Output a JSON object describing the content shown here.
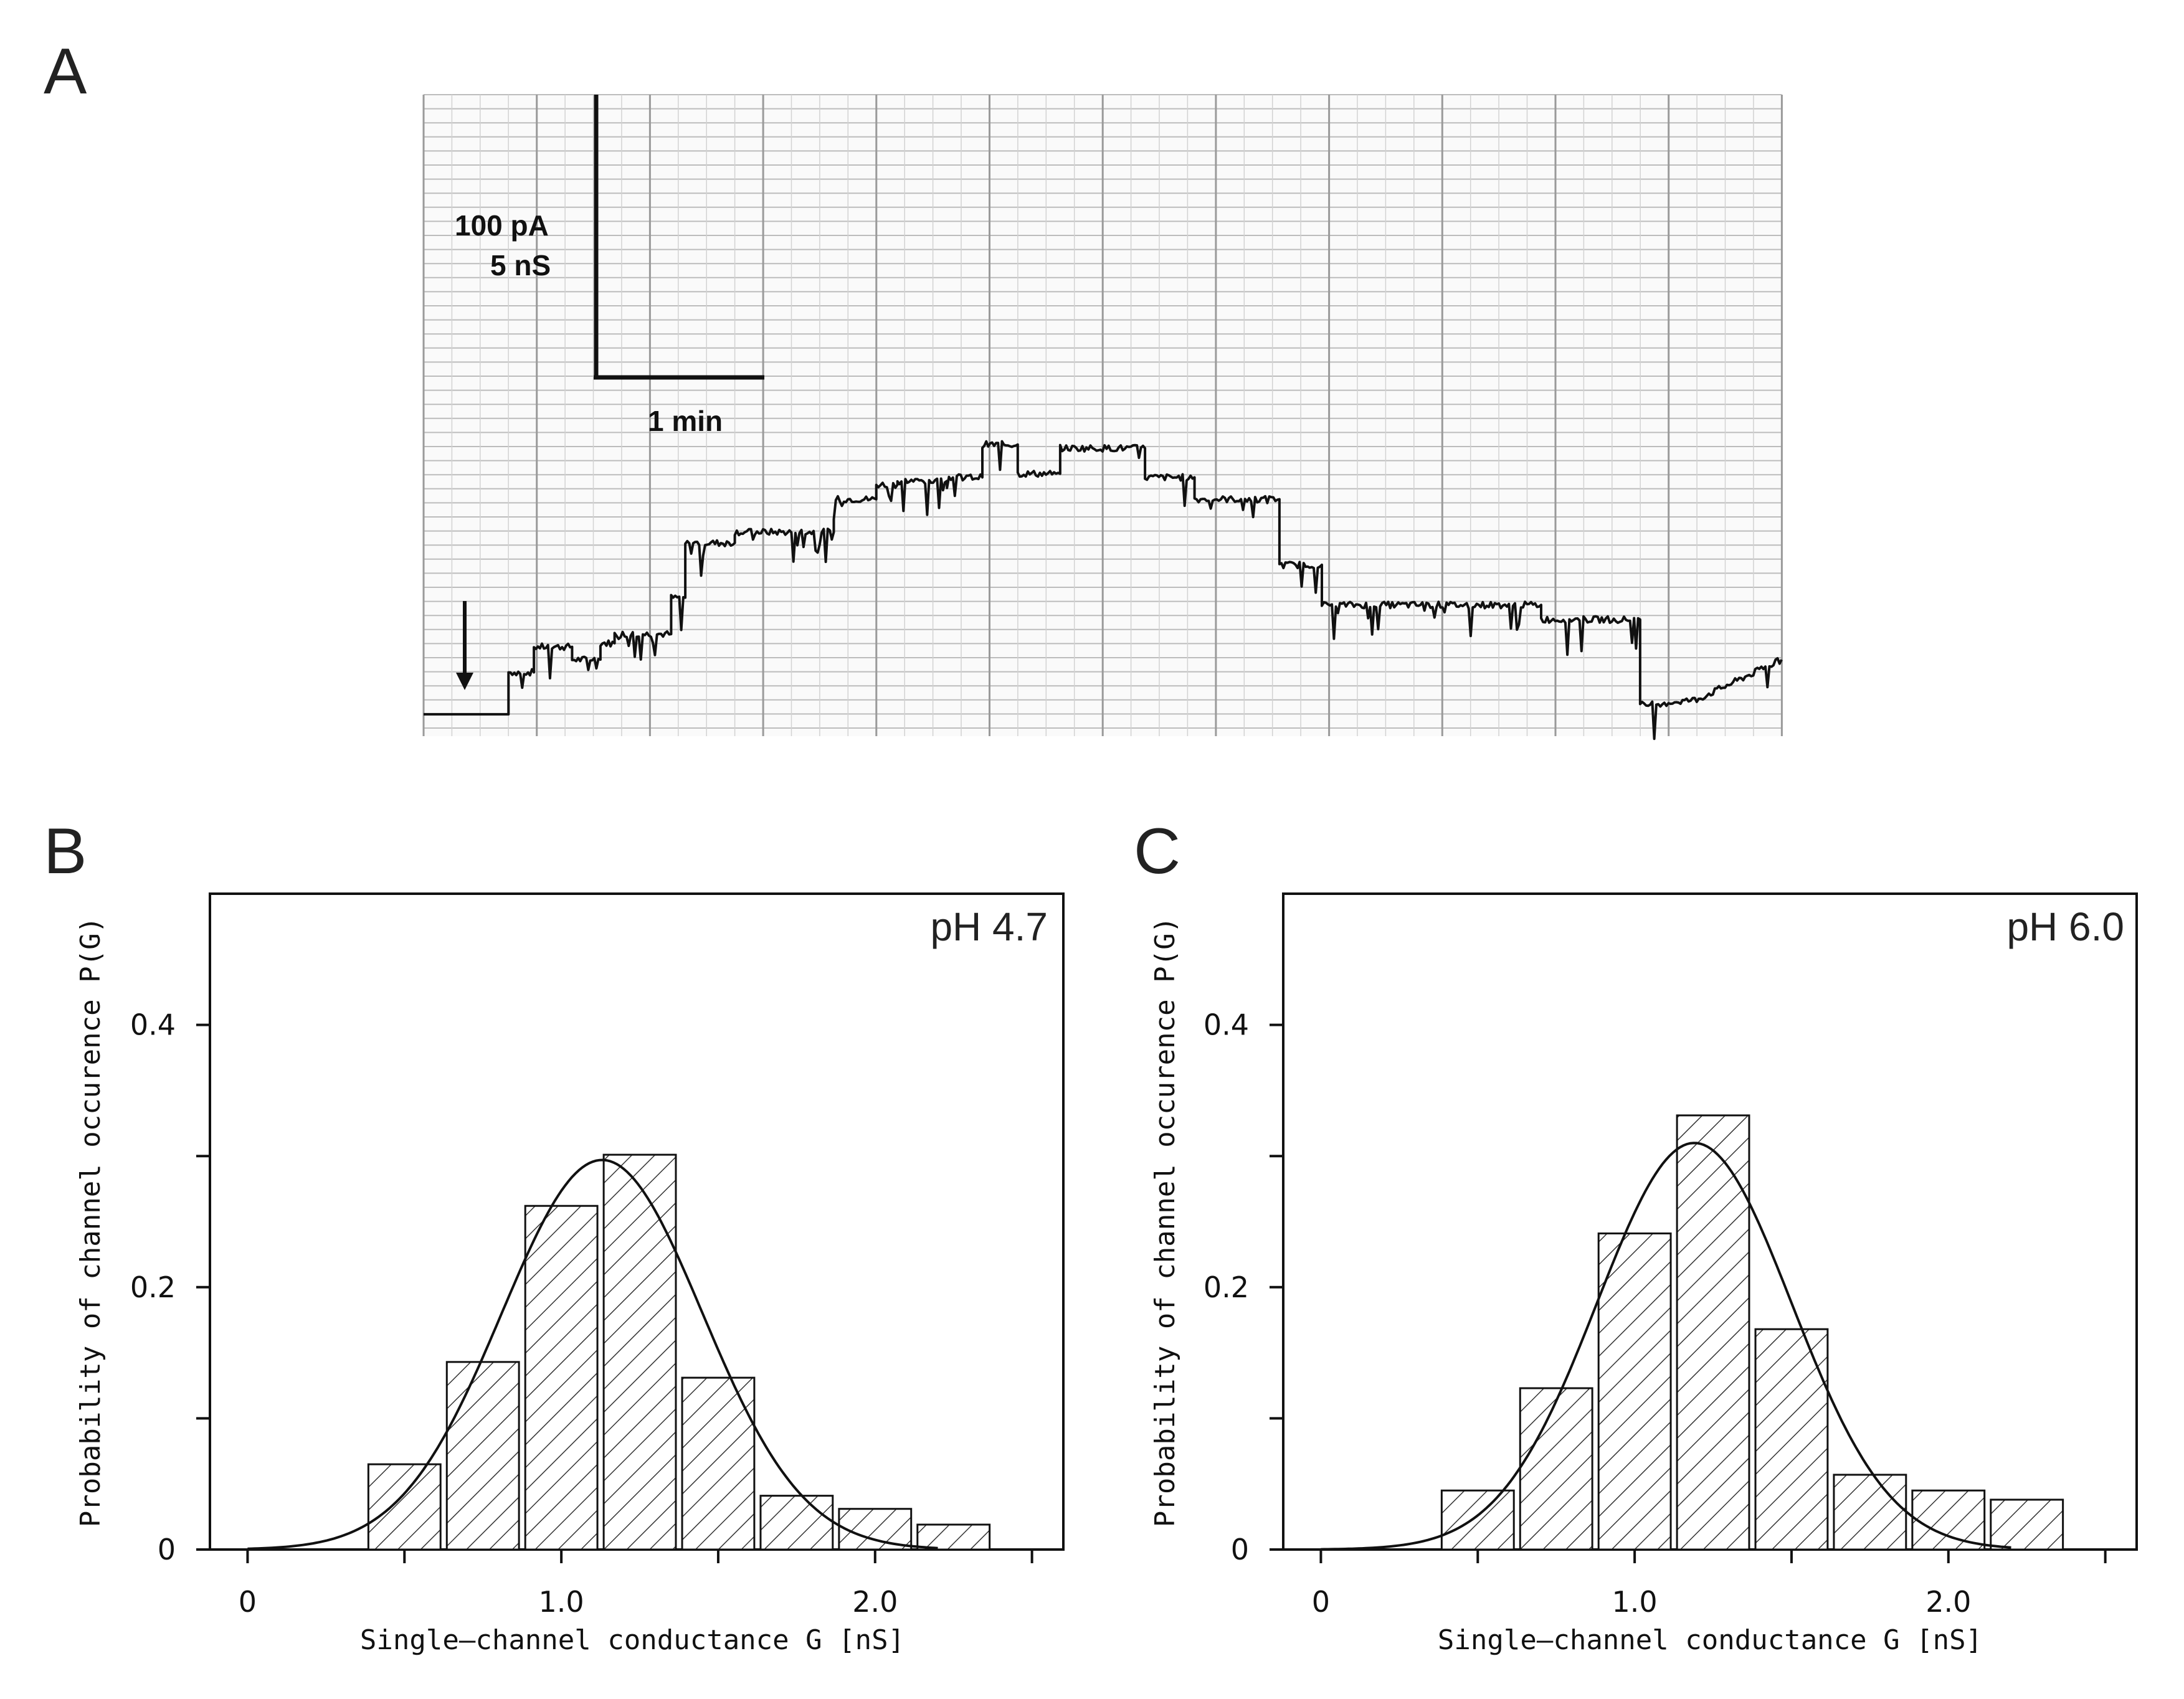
{
  "panels": {
    "A": {
      "letter": "A"
    },
    "B": {
      "letter": "B"
    },
    "C": {
      "letter": "C"
    }
  },
  "trace": {
    "scale_current": "100 pA",
    "scale_conductance": "5 nS",
    "scale_time": "1 min"
  },
  "chart_data": [
    {
      "type": "line",
      "panel": "A",
      "title": "",
      "description_units": {
        "y": "nS",
        "x": "min"
      },
      "x": [
        0,
        0.6,
        0.6,
        0.78,
        0.78,
        1.05,
        1.05,
        1.25,
        1.25,
        1.35,
        1.35,
        1.75,
        1.75,
        1.85,
        1.85,
        2.2,
        2.2,
        2.9,
        2.9,
        3.2,
        3.2,
        3.35,
        3.35,
        3.7,
        3.7,
        3.95,
        3.95,
        4.2,
        4.2,
        4.5,
        4.5,
        5.1,
        5.1,
        5.45,
        5.45,
        6.05,
        6.05,
        6.35,
        6.35,
        7.9,
        7.9,
        8.6,
        8.6,
        9.0,
        9.6
      ],
      "y": [
        0,
        0,
        1.15,
        1.15,
        1.85,
        1.85,
        1.5,
        1.5,
        1.95,
        1.95,
        2.2,
        2.2,
        3.2,
        3.2,
        4.7,
        4.7,
        5.0,
        5.0,
        5.9,
        5.9,
        6.3,
        6.3,
        6.4,
        6.4,
        6.5,
        6.5,
        7.4,
        7.4,
        6.6,
        6.6,
        7.3,
        7.3,
        6.5,
        6.5,
        5.9,
        5.9,
        4.1,
        4.1,
        3.0,
        3.0,
        2.6,
        2.6,
        0.25,
        0.4,
        1.5
      ],
      "xlim": [
        0,
        9.6
      ],
      "ylim": [
        -0.6,
        17.0
      ],
      "annotations": [
        "arrow marks addition at t = 0.28 min"
      ]
    },
    {
      "type": "bar",
      "panel": "B",
      "title": "pH 4.7",
      "xlabel": "Single–channel conductance G [nS]",
      "ylabel": "Probability of channel occurence P(G)",
      "categories": [
        "0.5",
        "0.75",
        "1.0",
        "1.25",
        "1.5",
        "1.75",
        "2.0",
        "2.25"
      ],
      "bin_centers": [
        0.5,
        0.75,
        1.0,
        1.25,
        1.5,
        1.75,
        2.0,
        2.25
      ],
      "values": [
        0.065,
        0.143,
        0.262,
        0.301,
        0.131,
        0.041,
        0.031,
        0.019
      ],
      "fit": {
        "type": "gaussian",
        "mean": 1.13,
        "sd": 0.32,
        "amplitude": 0.297
      },
      "xlim": [
        -0.12,
        2.6
      ],
      "ylim": [
        0,
        0.5
      ],
      "xticks": [
        0,
        1.0,
        2.0
      ],
      "xtick_labels": [
        "0",
        "1.0",
        "2.0"
      ],
      "yticks": [
        0,
        0.2,
        0.4
      ],
      "ytick_labels": [
        "0",
        "0.2",
        "0.4"
      ],
      "grid": false
    },
    {
      "type": "bar",
      "panel": "C",
      "title": "pH 6.0",
      "xlabel": "Single–channel conductance G [nS]",
      "ylabel": "Probability of channel occurence P(G)",
      "categories": [
        "0.5",
        "0.75",
        "1.0",
        "1.25",
        "1.5",
        "1.75",
        "2.0",
        "2.25"
      ],
      "bin_centers": [
        0.5,
        0.75,
        1.0,
        1.25,
        1.5,
        1.75,
        2.0,
        2.25
      ],
      "values": [
        0.045,
        0.123,
        0.241,
        0.331,
        0.168,
        0.057,
        0.045,
        0.038
      ],
      "fit": {
        "type": "gaussian",
        "mean": 1.19,
        "sd": 0.31,
        "amplitude": 0.31
      },
      "xlim": [
        -0.12,
        2.6
      ],
      "ylim": [
        0,
        0.5
      ],
      "xticks": [
        0,
        1.0,
        2.0
      ],
      "xtick_labels": [
        "0",
        "1.0",
        "2.0"
      ],
      "yticks": [
        0,
        0.2,
        0.4
      ],
      "ytick_labels": [
        "0",
        "0.2",
        "0.4"
      ],
      "grid": false
    }
  ]
}
